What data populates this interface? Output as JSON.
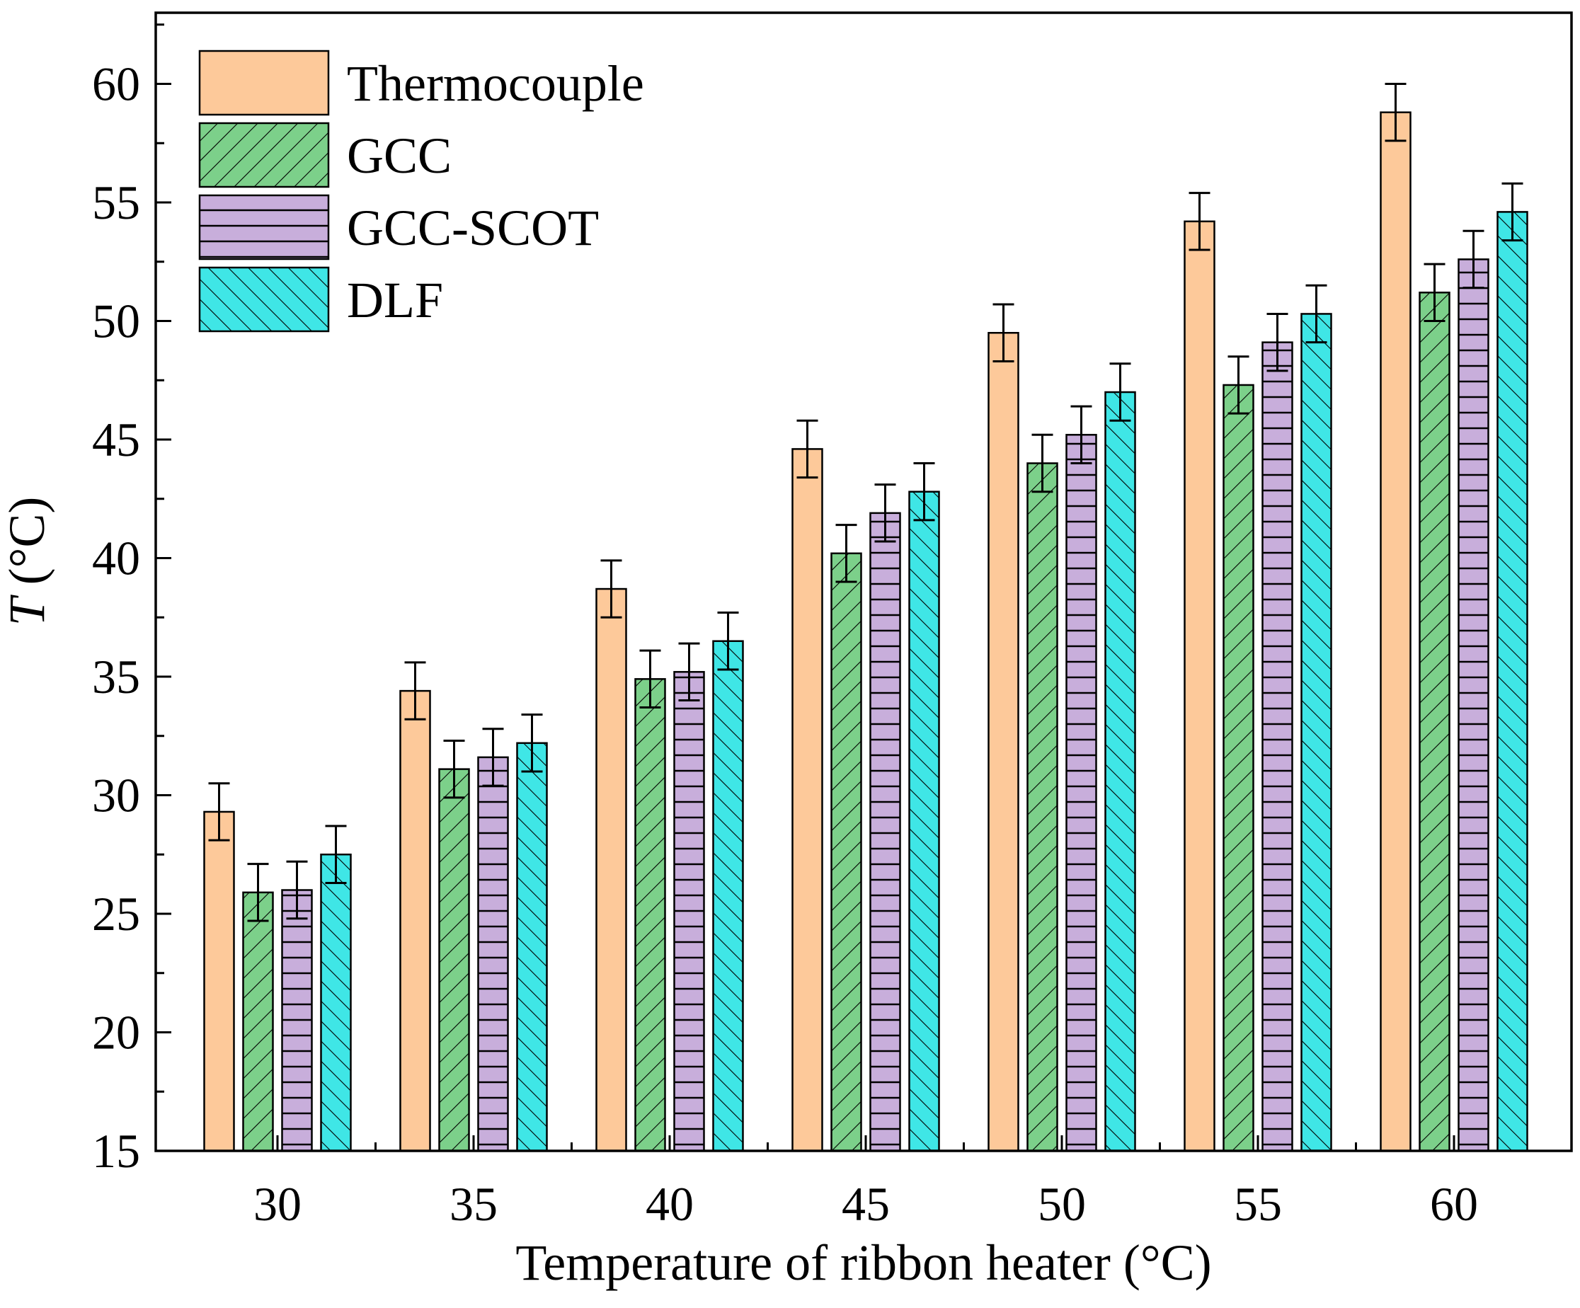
{
  "chart_data": {
    "type": "bar",
    "xlabel": "Temperature of ribbon heater (°C)",
    "ylabel_italic": "T",
    "ylabel_unit": " (°C)",
    "categories": [
      "30",
      "35",
      "40",
      "45",
      "50",
      "55",
      "60"
    ],
    "ylim": [
      15,
      63
    ],
    "yticks": [
      "15",
      "20",
      "25",
      "30",
      "35",
      "40",
      "45",
      "50",
      "55",
      "60"
    ],
    "grid": false,
    "legend_position": "top-left",
    "error": 1.2,
    "series": [
      {
        "name": "Thermocouple",
        "color": "#FDC99A",
        "pattern": "none",
        "values": [
          29.3,
          34.4,
          38.7,
          44.6,
          49.5,
          54.2,
          58.8
        ]
      },
      {
        "name": "GCC",
        "color": "#7CD08A",
        "pattern": "diagonal-forward",
        "values": [
          25.9,
          31.1,
          34.9,
          40.2,
          44.0,
          47.3,
          51.2
        ]
      },
      {
        "name": "GCC-SCOT",
        "color": "#C8AEDB",
        "pattern": "horizontal",
        "values": [
          26.0,
          31.6,
          35.2,
          41.9,
          45.2,
          49.1,
          52.6
        ]
      },
      {
        "name": "DLF",
        "color": "#3FE6E6",
        "pattern": "diagonal-backward",
        "values": [
          27.5,
          32.2,
          36.5,
          42.8,
          47.0,
          50.3,
          54.6
        ]
      }
    ]
  }
}
